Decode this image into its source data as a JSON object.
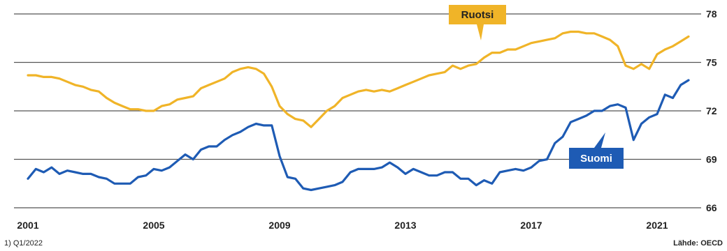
{
  "footnote": "1) Q1/2022",
  "source": "Lähde: OECD",
  "colors": {
    "ruotsi": "#f0b428",
    "suomi": "#1e5bb4",
    "grid": "#555555",
    "label_text_ruotsi": "#222222",
    "label_text_suomi": "#ffffff"
  },
  "chart_data": {
    "type": "line",
    "xlim": [
      2000.8,
      2022.0
    ],
    "ylim": [
      66,
      78
    ],
    "yticks": [
      66,
      69,
      72,
      75,
      78
    ],
    "xticks": [
      2001,
      2005,
      2009,
      2013,
      2017,
      2021
    ],
    "xtick_labels": [
      "2001",
      "2005",
      "2009",
      "2013",
      "2017",
      "2021"
    ],
    "grid": true,
    "series": [
      {
        "name": "Ruotsi",
        "color_key": "ruotsi",
        "x": [
          2001.0,
          2001.25,
          2001.5,
          2001.75,
          2002.0,
          2002.25,
          2002.5,
          2002.75,
          2003.0,
          2003.25,
          2003.5,
          2003.75,
          2004.0,
          2004.25,
          2004.5,
          2004.75,
          2005.0,
          2005.25,
          2005.5,
          2005.75,
          2006.0,
          2006.25,
          2006.5,
          2006.75,
          2007.0,
          2007.25,
          2007.5,
          2007.75,
          2008.0,
          2008.25,
          2008.5,
          2008.75,
          2009.0,
          2009.25,
          2009.5,
          2009.75,
          2010.0,
          2010.25,
          2010.5,
          2010.75,
          2011.0,
          2011.25,
          2011.5,
          2011.75,
          2012.0,
          2012.25,
          2012.5,
          2012.75,
          2013.0,
          2013.25,
          2013.5,
          2013.75,
          2014.0,
          2014.25,
          2014.5,
          2014.75,
          2015.0,
          2015.25,
          2015.5,
          2015.75,
          2016.0,
          2016.25,
          2016.5,
          2016.75,
          2017.0,
          2017.25,
          2017.5,
          2017.75,
          2018.0,
          2018.25,
          2018.5,
          2018.75,
          2019.0,
          2019.25,
          2019.5,
          2019.75,
          2020.0,
          2020.25,
          2020.5,
          2020.75,
          2021.0,
          2021.25,
          2021.5,
          2021.75,
          2022.0
        ],
        "values": [
          74.2,
          74.2,
          74.1,
          74.1,
          74.0,
          73.8,
          73.6,
          73.5,
          73.3,
          73.2,
          72.8,
          72.5,
          72.3,
          72.1,
          72.1,
          72.0,
          72.0,
          72.3,
          72.4,
          72.7,
          72.8,
          72.9,
          73.4,
          73.6,
          73.8,
          74.0,
          74.4,
          74.6,
          74.7,
          74.6,
          74.3,
          73.5,
          72.3,
          71.8,
          71.5,
          71.4,
          71.0,
          71.5,
          72.0,
          72.3,
          72.8,
          73.0,
          73.2,
          73.3,
          73.2,
          73.3,
          73.2,
          73.4,
          73.6,
          73.8,
          74.0,
          74.2,
          74.3,
          74.4,
          74.8,
          74.6,
          74.8,
          74.9,
          75.3,
          75.6,
          75.6,
          75.8,
          75.8,
          76.0,
          76.2,
          76.3,
          76.4,
          76.5,
          76.8,
          76.9,
          76.9,
          76.8,
          76.8,
          76.6,
          76.4,
          76.0,
          74.8,
          74.6,
          74.9,
          74.6,
          75.5,
          75.8,
          76.0,
          76.3,
          76.6
        ],
        "label": "Ruotsi"
      },
      {
        "name": "Suomi",
        "color_key": "suomi",
        "x": [
          2001.0,
          2001.25,
          2001.5,
          2001.75,
          2002.0,
          2002.25,
          2002.5,
          2002.75,
          2003.0,
          2003.25,
          2003.5,
          2003.75,
          2004.0,
          2004.25,
          2004.5,
          2004.75,
          2005.0,
          2005.25,
          2005.5,
          2005.75,
          2006.0,
          2006.25,
          2006.5,
          2006.75,
          2007.0,
          2007.25,
          2007.5,
          2007.75,
          2008.0,
          2008.25,
          2008.5,
          2008.75,
          2009.0,
          2009.25,
          2009.5,
          2009.75,
          2010.0,
          2010.25,
          2010.5,
          2010.75,
          2011.0,
          2011.25,
          2011.5,
          2011.75,
          2012.0,
          2012.25,
          2012.5,
          2012.75,
          2013.0,
          2013.25,
          2013.5,
          2013.75,
          2014.0,
          2014.25,
          2014.5,
          2014.75,
          2015.0,
          2015.25,
          2015.5,
          2015.75,
          2016.0,
          2016.25,
          2016.5,
          2016.75,
          2017.0,
          2017.25,
          2017.5,
          2017.75,
          2018.0,
          2018.25,
          2018.5,
          2018.75,
          2019.0,
          2019.25,
          2019.5,
          2019.75,
          2020.0,
          2020.25,
          2020.5,
          2020.75,
          2021.0,
          2021.25,
          2021.5,
          2021.75,
          2022.0
        ],
        "values": [
          67.8,
          68.4,
          68.2,
          68.5,
          68.1,
          68.3,
          68.2,
          68.1,
          68.1,
          67.9,
          67.8,
          67.5,
          67.5,
          67.5,
          67.9,
          68.0,
          68.4,
          68.3,
          68.5,
          68.9,
          69.3,
          69.0,
          69.6,
          69.8,
          69.8,
          70.2,
          70.5,
          70.7,
          71.0,
          71.2,
          71.1,
          71.1,
          69.2,
          67.9,
          67.8,
          67.2,
          67.1,
          67.2,
          67.3,
          67.4,
          67.6,
          68.2,
          68.4,
          68.4,
          68.4,
          68.5,
          68.8,
          68.5,
          68.1,
          68.4,
          68.2,
          68.0,
          68.0,
          68.2,
          68.2,
          67.8,
          67.8,
          67.4,
          67.7,
          67.5,
          68.2,
          68.3,
          68.4,
          68.3,
          68.5,
          68.9,
          69.0,
          70.0,
          70.4,
          71.3,
          71.5,
          71.7,
          72.0,
          72.0,
          72.3,
          72.4,
          72.2,
          70.2,
          71.2,
          71.6,
          71.8,
          73.0,
          72.8,
          73.6,
          73.9
        ],
        "label": "Suomi"
      }
    ]
  }
}
